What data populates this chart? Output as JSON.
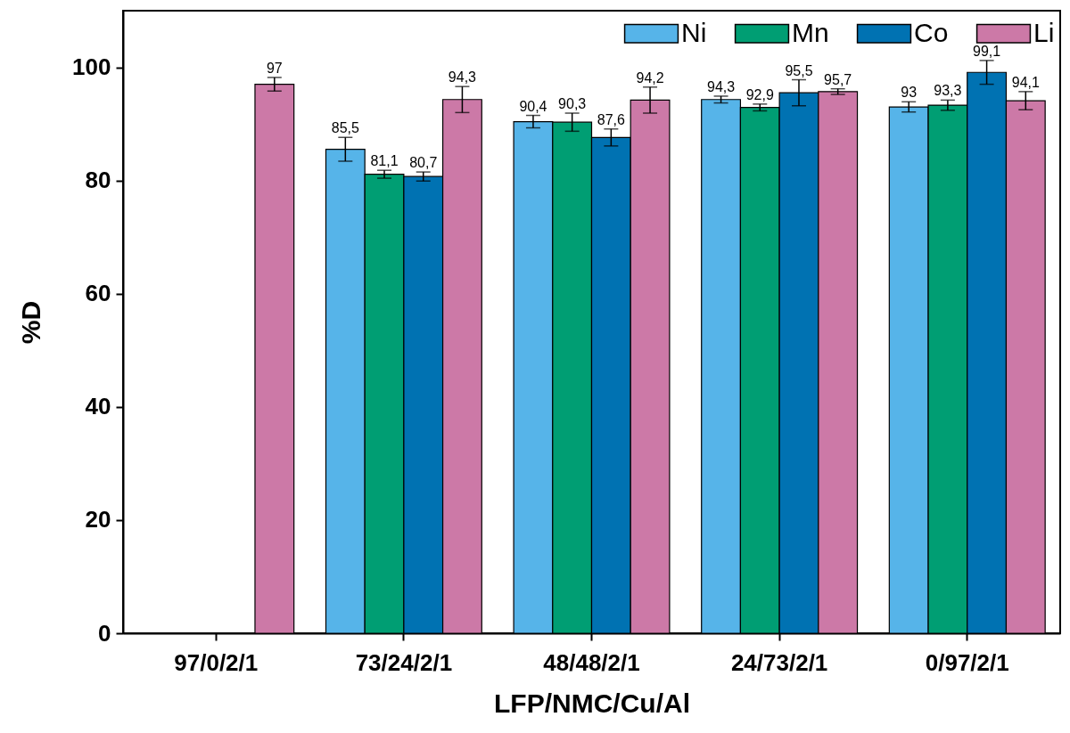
{
  "chart_data": {
    "type": "bar",
    "xlabel": "LFP/NMC/Cu/Al",
    "ylabel": "%D",
    "categories": [
      "97/0/2/1",
      "73/24/2/1",
      "48/48/2/1",
      "24/73/2/1",
      "0/97/2/1"
    ],
    "ylim": [
      0,
      110
    ],
    "yticks": [
      0,
      20,
      40,
      60,
      80,
      100
    ],
    "grid": false,
    "legend": "top right",
    "series": [
      {
        "name": "Ni",
        "color": "#56b4e9",
        "values": [
          null,
          85.5,
          90.4,
          94.3,
          93
        ],
        "errors": [
          null,
          2.1,
          1.1,
          0.6,
          0.9
        ],
        "value_labels": [
          null,
          "85,5",
          "90,4",
          "94,3",
          "93"
        ]
      },
      {
        "name": "Mn",
        "color": "#009e73",
        "values": [
          null,
          81.1,
          90.3,
          92.9,
          93.3
        ],
        "errors": [
          null,
          0.7,
          1.6,
          0.6,
          0.9
        ],
        "value_labels": [
          null,
          "81,1",
          "90,3",
          "92,9",
          "93,3"
        ]
      },
      {
        "name": "Co",
        "color": "#0072b2",
        "values": [
          null,
          80.7,
          87.6,
          95.5,
          99.1
        ],
        "errors": [
          null,
          0.8,
          1.5,
          2.3,
          2.1
        ],
        "value_labels": [
          null,
          "80,7",
          "87,6",
          "95,5",
          "99,1"
        ]
      },
      {
        "name": "Li",
        "color": "#cc79a7",
        "values": [
          97,
          94.3,
          94.2,
          95.7,
          94.1
        ],
        "errors": [
          1.2,
          2.3,
          2.3,
          0.5,
          1.6
        ],
        "value_labels": [
          "97",
          "94,3",
          "94,2",
          "95,7",
          "94,1"
        ]
      }
    ]
  }
}
